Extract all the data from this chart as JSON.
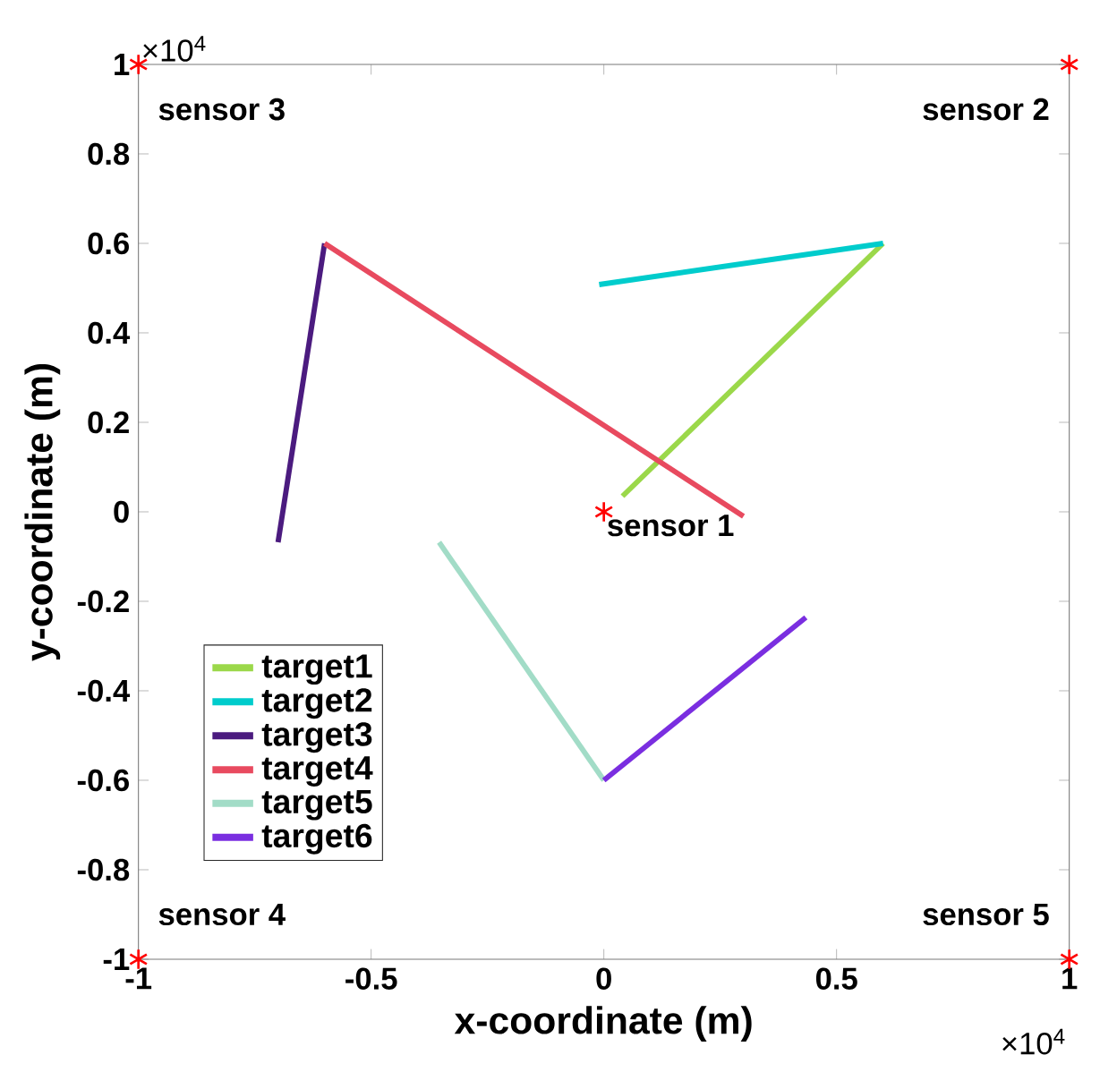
{
  "chart_data": {
    "type": "line",
    "xlabel": "x-coordinate (m)",
    "ylabel": "y-coordinate (m)",
    "xlim": [
      -1,
      1
    ],
    "ylim": [
      -1,
      1
    ],
    "xticks": [
      -1,
      -0.5,
      0,
      0.5,
      1
    ],
    "yticks": [
      -1,
      -0.8,
      -0.6,
      -0.4,
      -0.2,
      0,
      0.2,
      0.4,
      0.6,
      0.8,
      1
    ],
    "legend": "bottom left",
    "grid": false,
    "marker": "none",
    "series": [
      {
        "name": "target1",
        "color": "#9bd84a",
        "x": [
          0.04,
          0.6
        ],
        "values": [
          0.035,
          0.6
        ]
      },
      {
        "name": "target2",
        "color": "#00cccc",
        "x": [
          -0.01,
          0.6
        ],
        "values": [
          0.508,
          0.6
        ]
      },
      {
        "name": "target3",
        "color": "#4b1b7f",
        "x": [
          -0.7,
          -0.6
        ],
        "values": [
          -0.068,
          0.6
        ]
      },
      {
        "name": "target4",
        "color": "#e84a5f",
        "x": [
          -0.6,
          0.3
        ],
        "values": [
          0.6,
          -0.01
        ]
      },
      {
        "name": "target5",
        "color": "#a2dcc7",
        "x": [
          -0.354,
          0
        ],
        "values": [
          -0.068,
          -0.6
        ]
      },
      {
        "name": "target6",
        "color": "#7a2ee0",
        "x": [
          0,
          0.434
        ],
        "values": [
          -0.6,
          -0.236
        ]
      },
      {
        "type": "scatter",
        "marker": "cross",
        "color": "#ff0000",
        "x": [
          0,
          1,
          -1,
          -1,
          1
        ],
        "values": [
          0,
          1,
          1,
          -1,
          -1
        ]
      }
    ],
    "annotations": [
      "×10$^{4}$",
      "×10$^{4}$",
      {
        "text": "sensor 1",
        "x": 0,
        "y": 0
      },
      {
        "text": "sensor 2",
        "x": 1,
        "y": 1
      },
      {
        "text": "sensor 3",
        "x": -1,
        "y": 1
      },
      {
        "text": "sensor 4",
        "x": -1,
        "y": -1
      },
      {
        "text": "sensor 5",
        "x": 1,
        "y": -1
      }
    ]
  }
}
